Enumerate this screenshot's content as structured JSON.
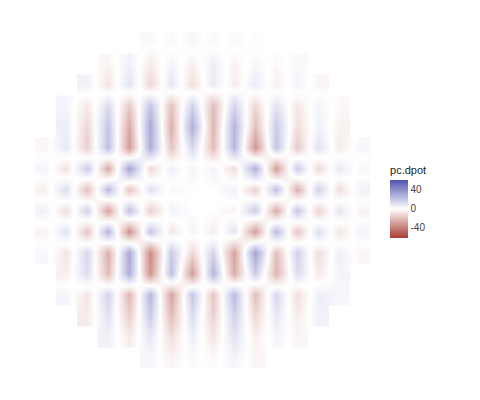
{
  "chart_data": {
    "type": "heatmap",
    "colorbar_title": "pc.dpot",
    "x": [
      0,
      1,
      2,
      3,
      4,
      5,
      6,
      7,
      8,
      9,
      10,
      11,
      12,
      13,
      14,
      15
    ],
    "y": [
      0,
      1,
      2,
      3,
      4,
      5,
      6,
      7,
      8,
      9,
      10,
      11,
      12,
      13,
      14,
      15
    ],
    "xlim": [
      -0.5,
      15.5
    ],
    "ylim": [
      -0.5,
      15.5
    ],
    "tick_labels": false,
    "grid": false,
    "zlim": [
      -60,
      60
    ],
    "zticks": [
      -40,
      0,
      40
    ],
    "colors": [
      "#a83a32",
      "#ffffff",
      "#5353b0"
    ],
    "cells": [
      [
        null,
        null,
        null,
        null,
        null,
        3,
        -4,
        2,
        -2,
        4,
        -3,
        null,
        null,
        null,
        null,
        null
      ],
      [
        null,
        null,
        null,
        5,
        -6,
        8,
        -10,
        6,
        -8,
        10,
        -5,
        4,
        -3,
        null,
        null,
        null
      ],
      [
        null,
        null,
        -6,
        10,
        -15,
        18,
        -20,
        12,
        -14,
        16,
        -12,
        8,
        -6,
        5,
        null,
        null
      ],
      [
        null,
        4,
        -8,
        15,
        -22,
        25,
        -28,
        20,
        -18,
        24,
        -20,
        14,
        -10,
        6,
        3,
        null
      ],
      [
        null,
        -5,
        12,
        -20,
        28,
        -32,
        22,
        -30,
        26,
        -25,
        18,
        -22,
        12,
        -6,
        4,
        null
      ],
      [
        3,
        -8,
        14,
        -24,
        30,
        -35,
        18,
        -12,
        15,
        -28,
        32,
        -20,
        16,
        -10,
        6,
        -3
      ],
      [
        -4,
        10,
        -18,
        26,
        -34,
        20,
        -8,
        4,
        -6,
        10,
        -30,
        24,
        -18,
        12,
        -8,
        4
      ],
      [
        5,
        -10,
        16,
        -28,
        22,
        -15,
        5,
        0,
        0,
        -4,
        18,
        -26,
        20,
        -14,
        9,
        -4
      ],
      [
        -5,
        12,
        -20,
        24,
        -18,
        10,
        -3,
        0,
        0,
        5,
        -15,
        22,
        -24,
        16,
        -10,
        5
      ],
      [
        4,
        -9,
        18,
        -26,
        32,
        -12,
        6,
        -4,
        5,
        -10,
        28,
        -30,
        18,
        -12,
        8,
        -3
      ],
      [
        -3,
        8,
        -15,
        22,
        -30,
        28,
        -18,
        14,
        -20,
        25,
        -32,
        20,
        -16,
        10,
        -6,
        3
      ],
      [
        null,
        6,
        -12,
        20,
        -26,
        30,
        -24,
        28,
        -22,
        26,
        -20,
        18,
        -10,
        5,
        -4,
        null
      ],
      [
        null,
        4,
        -7,
        12,
        -16,
        20,
        -18,
        16,
        -20,
        15,
        -12,
        10,
        -7,
        4,
        -2,
        null
      ],
      [
        null,
        null,
        5,
        -8,
        10,
        -12,
        9,
        -10,
        8,
        -6,
        7,
        -5,
        4,
        -3,
        null,
        null
      ],
      [
        null,
        null,
        null,
        -3,
        5,
        -6,
        4,
        -5,
        6,
        -4,
        3,
        -2,
        2,
        null,
        null,
        null
      ],
      [
        null,
        null,
        null,
        null,
        null,
        2,
        -2,
        3,
        -2,
        2,
        -1,
        null,
        null,
        null,
        null,
        null
      ]
    ]
  }
}
